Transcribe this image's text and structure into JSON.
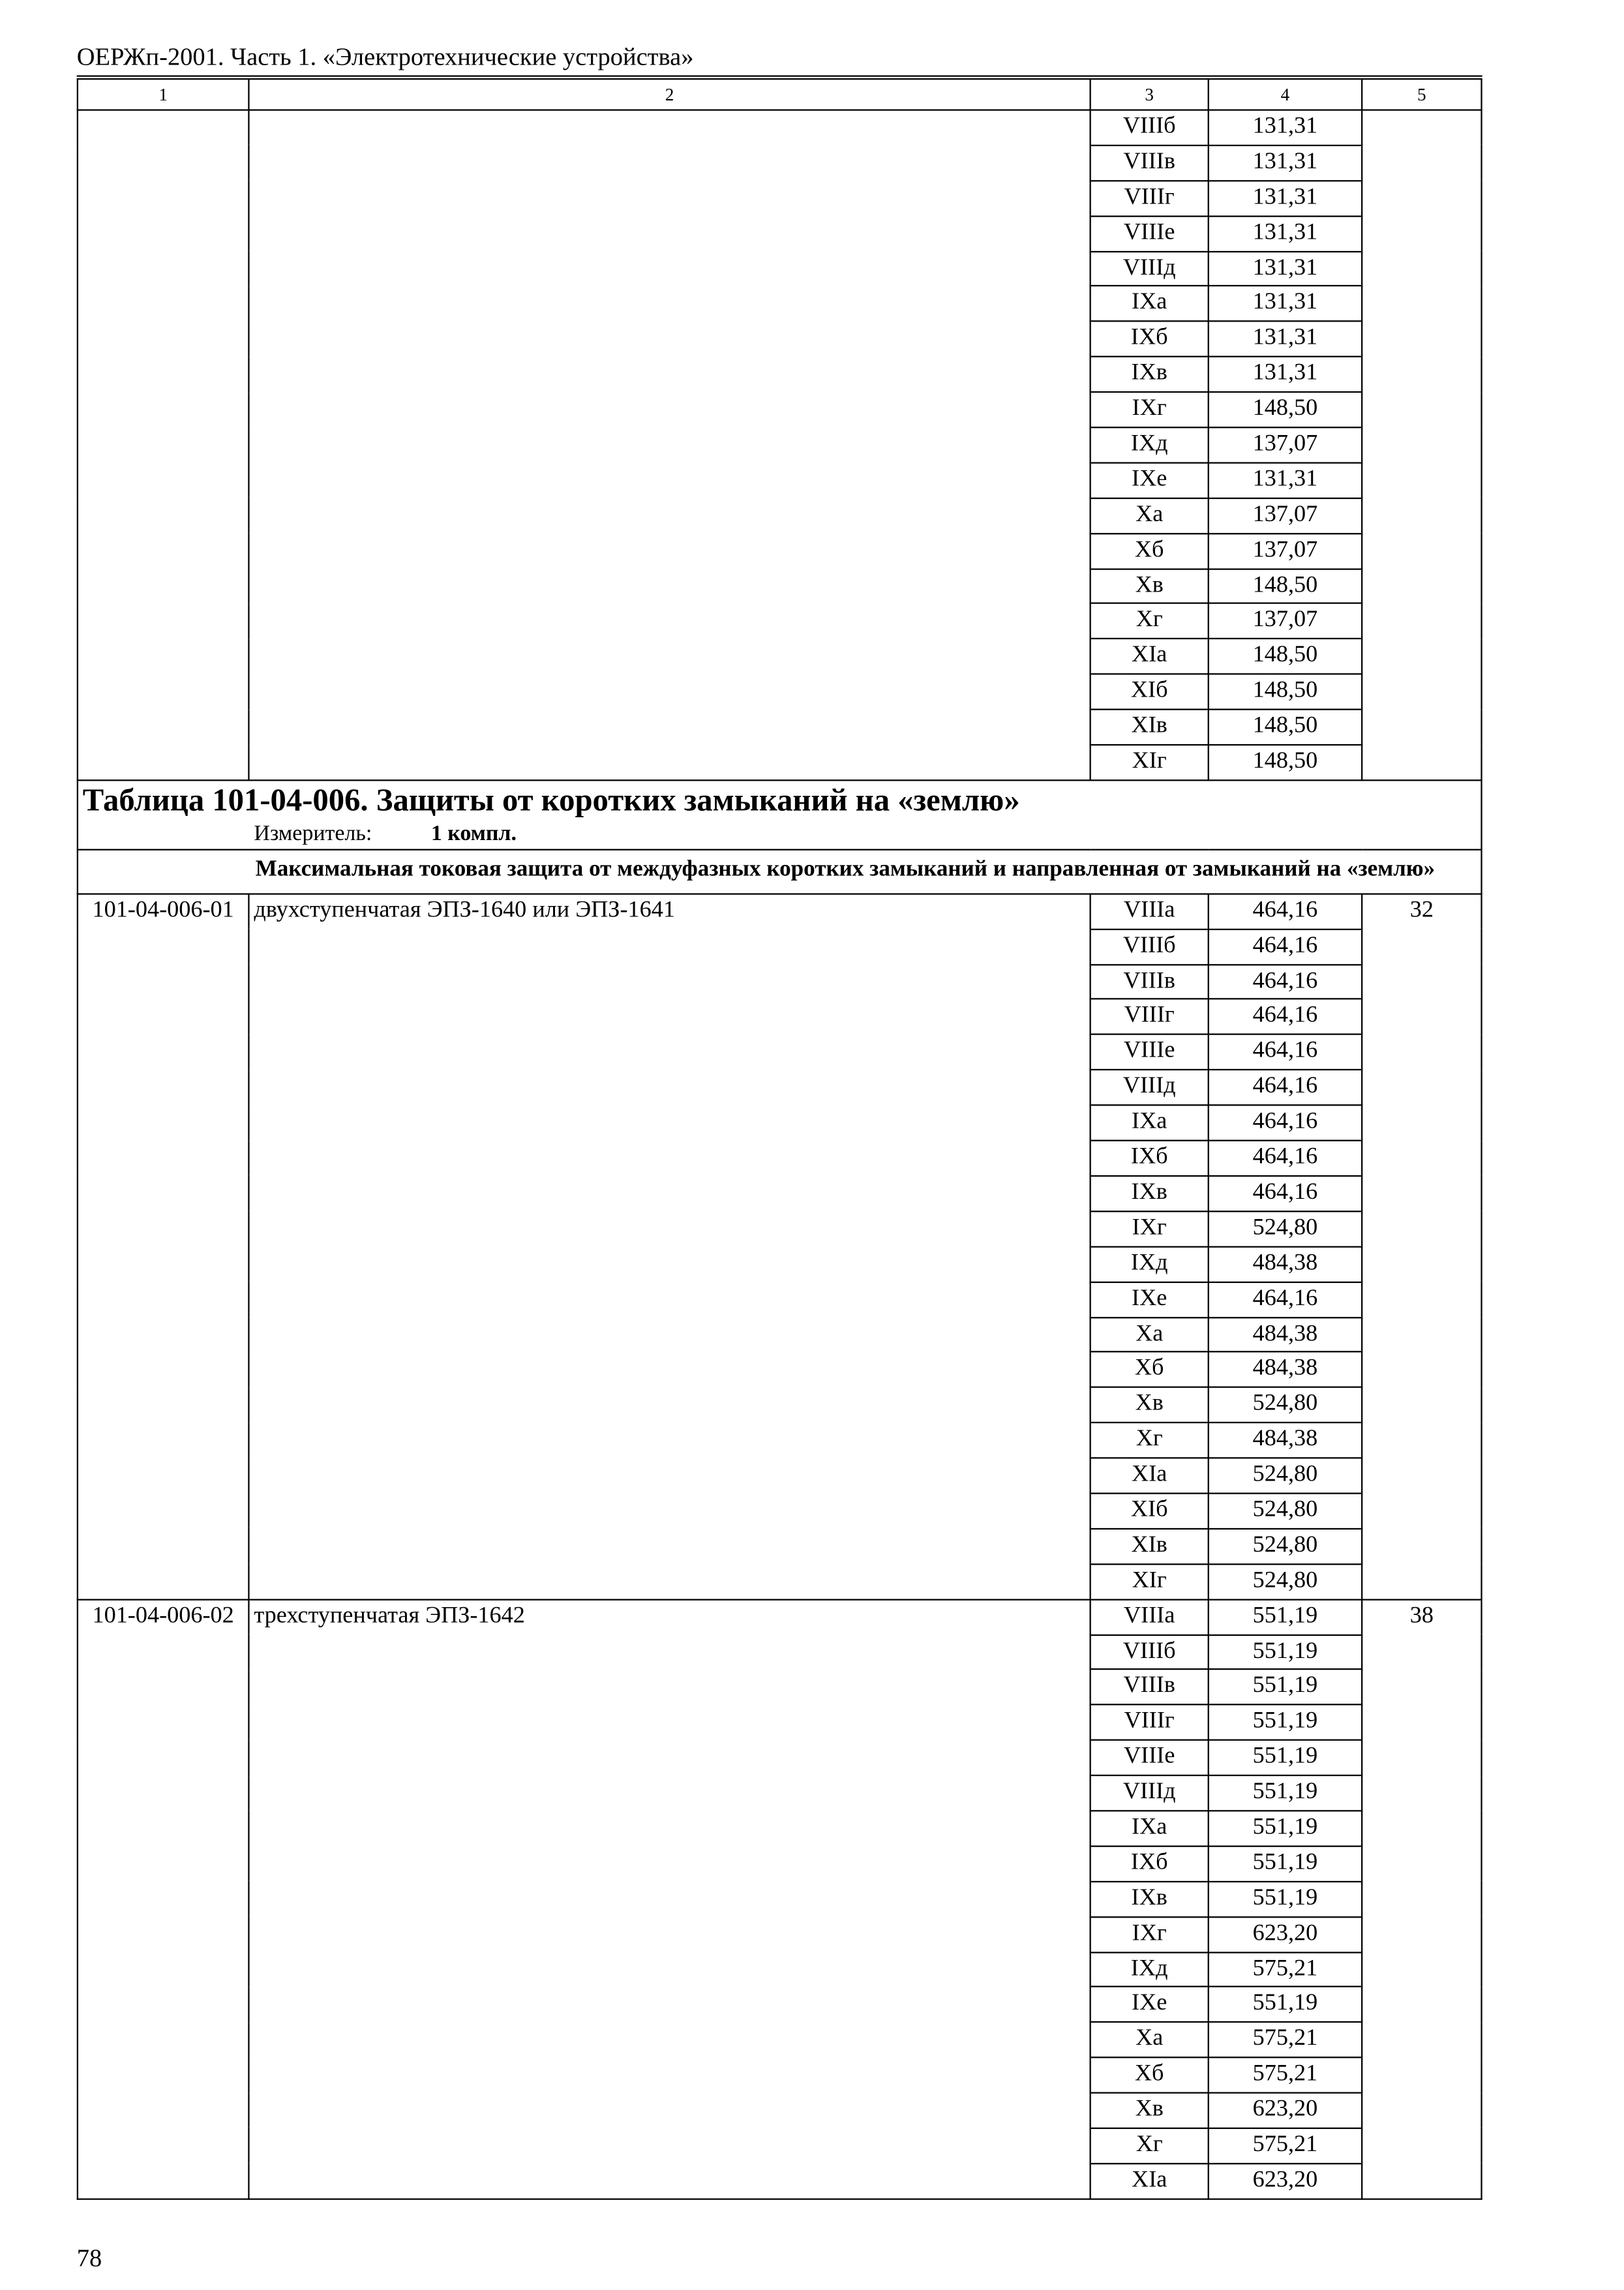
{
  "header": "ОЕРЖп-2001. Часть 1. «Электротехнические устройства»",
  "column_numbers": [
    "1",
    "2",
    "3",
    "4",
    "5"
  ],
  "continuation_rows": [
    [
      "VIIIб",
      "131,31"
    ],
    [
      "VIIIв",
      "131,31"
    ],
    [
      "VIIIг",
      "131,31"
    ],
    [
      "VIIIе",
      "131,31"
    ],
    [
      "VIIIд",
      "131,31"
    ],
    [
      "IXа",
      "131,31"
    ],
    [
      "IXб",
      "131,31"
    ],
    [
      "IXв",
      "131,31"
    ],
    [
      "IXг",
      "148,50"
    ],
    [
      "IXд",
      "137,07"
    ],
    [
      "IXе",
      "131,31"
    ],
    [
      "Xа",
      "137,07"
    ],
    [
      "Xб",
      "137,07"
    ],
    [
      "Xв",
      "148,50"
    ],
    [
      "Xг",
      "137,07"
    ],
    [
      "XIа",
      "148,50"
    ],
    [
      "XIб",
      "148,50"
    ],
    [
      "XIв",
      "148,50"
    ],
    [
      "XIг",
      "148,50"
    ]
  ],
  "table_title": "Таблица 101-04-006. Защиты от коротких замыканий на «землю»",
  "measure_label": "Измеритель:",
  "measure_value": "1 компл.",
  "subheading": "Максимальная токовая защита от междуфазных коротких замыканий и направленная от замыканий на «землю»",
  "items": [
    {
      "code": "101-04-006-01",
      "name": "двухступенчатая ЭПЗ-1640 или ЭПЗ-1641",
      "col5": "32",
      "rows": [
        [
          "VIIIа",
          "464,16"
        ],
        [
          "VIIIб",
          "464,16"
        ],
        [
          "VIIIв",
          "464,16"
        ],
        [
          "VIIIг",
          "464,16"
        ],
        [
          "VIIIе",
          "464,16"
        ],
        [
          "VIIIд",
          "464,16"
        ],
        [
          "IXа",
          "464,16"
        ],
        [
          "IXб",
          "464,16"
        ],
        [
          "IXв",
          "464,16"
        ],
        [
          "IXг",
          "524,80"
        ],
        [
          "IXд",
          "484,38"
        ],
        [
          "IXе",
          "464,16"
        ],
        [
          "Xа",
          "484,38"
        ],
        [
          "Xб",
          "484,38"
        ],
        [
          "Xв",
          "524,80"
        ],
        [
          "Xг",
          "484,38"
        ],
        [
          "XIа",
          "524,80"
        ],
        [
          "XIб",
          "524,80"
        ],
        [
          "XIв",
          "524,80"
        ],
        [
          "XIг",
          "524,80"
        ]
      ]
    },
    {
      "code": "101-04-006-02",
      "name": "трехступенчатая ЭПЗ-1642",
      "col5": "38",
      "rows": [
        [
          "VIIIа",
          "551,19"
        ],
        [
          "VIIIб",
          "551,19"
        ],
        [
          "VIIIв",
          "551,19"
        ],
        [
          "VIIIг",
          "551,19"
        ],
        [
          "VIIIе",
          "551,19"
        ],
        [
          "VIIIд",
          "551,19"
        ],
        [
          "IXа",
          "551,19"
        ],
        [
          "IXб",
          "551,19"
        ],
        [
          "IXв",
          "551,19"
        ],
        [
          "IXг",
          "623,20"
        ],
        [
          "IXд",
          "575,21"
        ],
        [
          "IXе",
          "551,19"
        ],
        [
          "Xа",
          "575,21"
        ],
        [
          "Xб",
          "575,21"
        ],
        [
          "Xв",
          "623,20"
        ],
        [
          "Xг",
          "575,21"
        ],
        [
          "XIа",
          "623,20"
        ]
      ]
    }
  ],
  "page_number": "78"
}
